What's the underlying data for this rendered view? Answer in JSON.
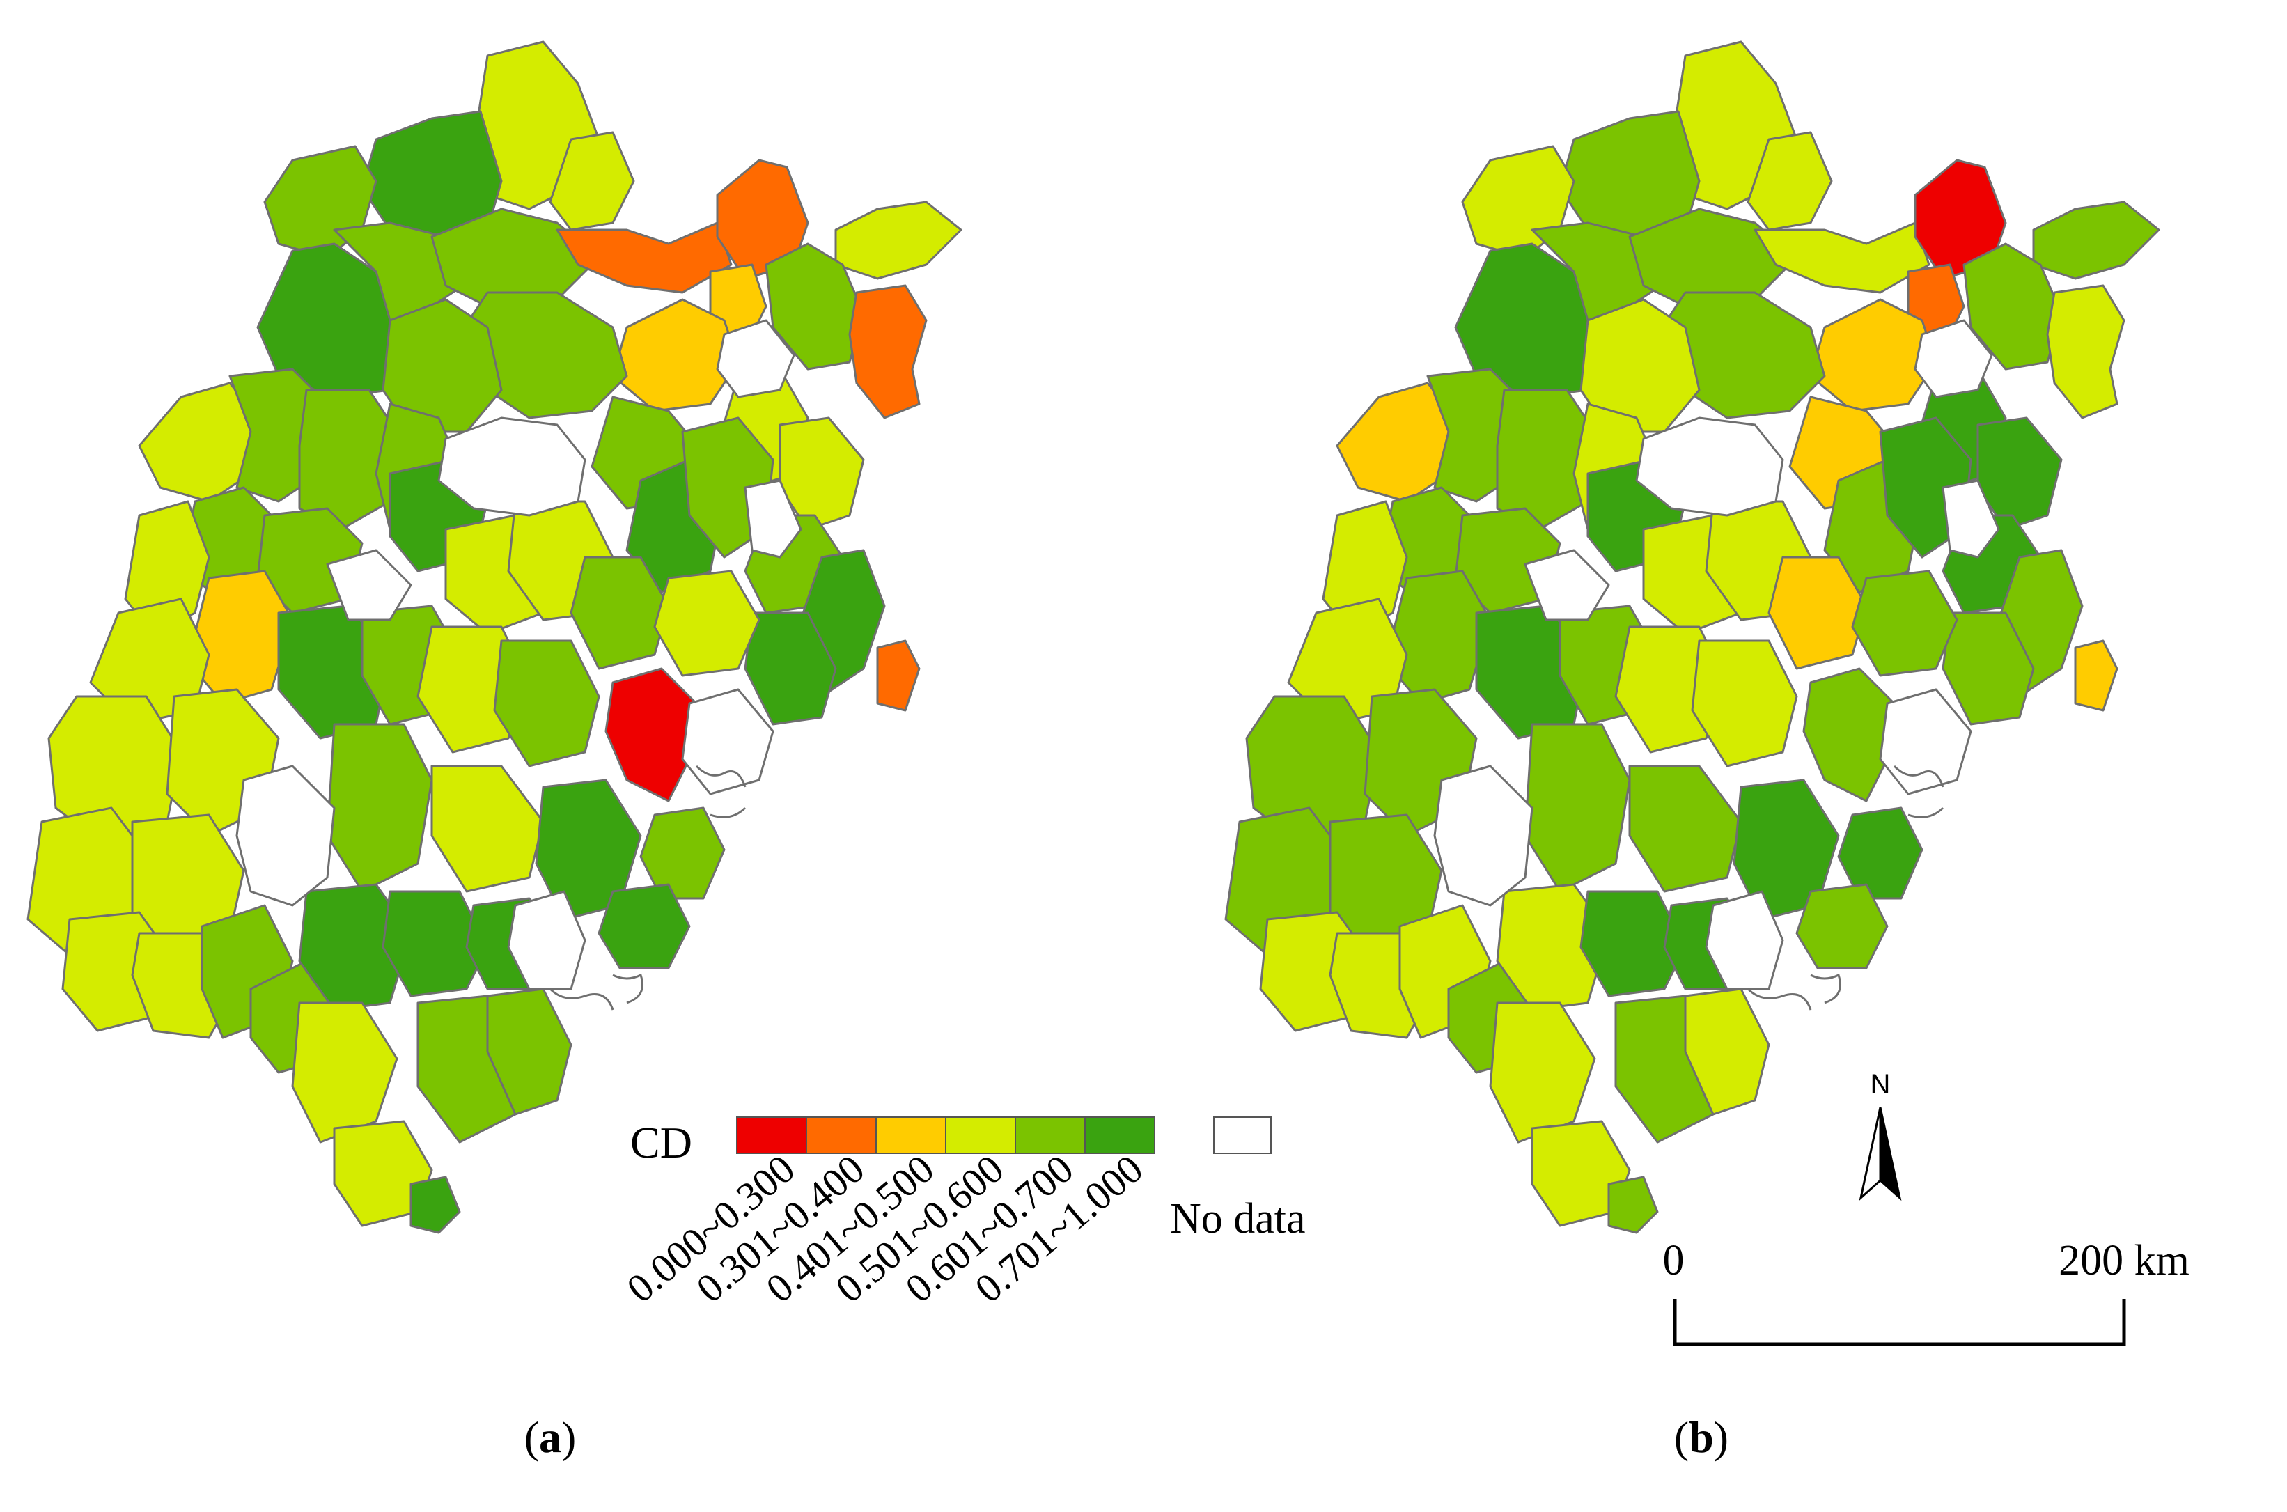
{
  "legend": {
    "title": "CD",
    "classes": [
      {
        "range": "0.000~0.300",
        "color": "#ee0000"
      },
      {
        "range": "0.301~0.400",
        "color": "#ff6a00"
      },
      {
        "range": "0.401~0.500",
        "color": "#ffcc00"
      },
      {
        "range": "0.501~0.600",
        "color": "#d4ec00"
      },
      {
        "range": "0.601~0.700",
        "color": "#7bc300"
      },
      {
        "range": "0.701~1.000",
        "color": "#3aa310"
      }
    ],
    "no_data_label": "No data",
    "no_data_color": "#ffffff"
  },
  "panels": [
    {
      "label": "a"
    },
    {
      "label": "b"
    }
  ],
  "north_arrow": {
    "label": "N"
  },
  "scale_bar": {
    "start_label": "0",
    "end_label": "200 km"
  },
  "colors": {
    "boundary": "#6f6f6f",
    "background": "#ffffff"
  }
}
